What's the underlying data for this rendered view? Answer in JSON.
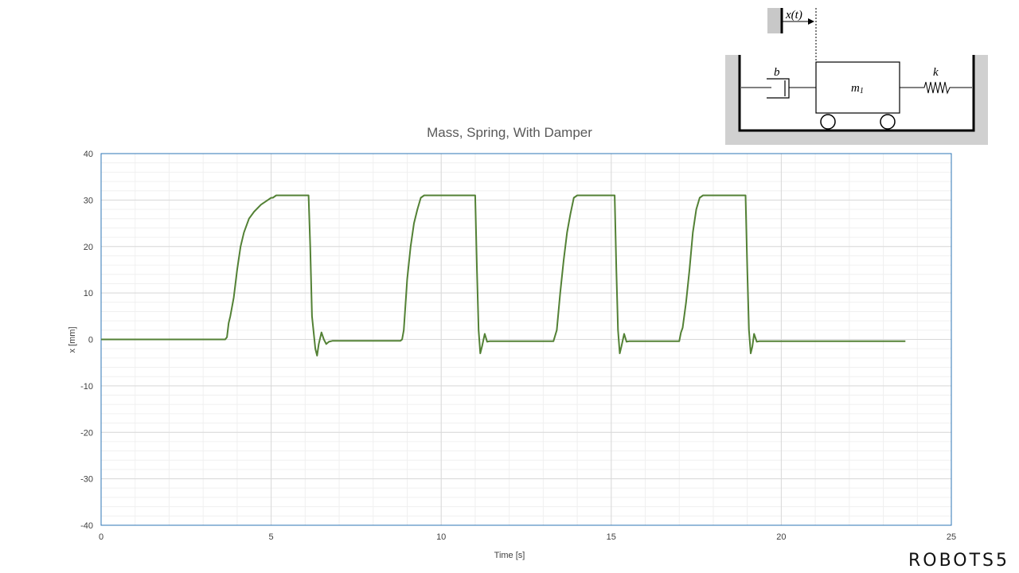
{
  "chart_data": {
    "type": "line",
    "title": "Mass, Spring, With Damper",
    "xlabel": "Time [s]",
    "ylabel": "x [mm]",
    "xlim": [
      0,
      25
    ],
    "ylim": [
      -40,
      40
    ],
    "x_ticks": [
      0,
      5,
      10,
      15,
      20,
      25
    ],
    "y_ticks": [
      -40,
      -30,
      -20,
      -10,
      0,
      10,
      20,
      30,
      40
    ],
    "grid": true,
    "legend": "none",
    "series": [
      {
        "color": "#538135",
        "x": [
          0,
          3.65,
          3.7,
          3.75,
          3.8,
          3.9,
          4.0,
          4.1,
          4.2,
          4.35,
          4.5,
          4.7,
          4.9,
          5.0,
          5.05,
          5.15,
          5.3,
          5.5,
          6.1,
          6.15,
          6.2,
          6.3,
          6.35,
          6.4,
          6.48,
          6.55,
          6.62,
          6.7,
          6.8,
          8.8,
          8.85,
          8.9,
          9.0,
          9.1,
          9.2,
          9.3,
          9.4,
          9.5,
          9.6,
          11.0,
          11.05,
          11.1,
          11.15,
          11.2,
          11.28,
          11.35,
          11.42,
          11.5,
          11.6,
          13.3,
          13.4,
          13.5,
          13.6,
          13.7,
          13.8,
          13.9,
          14.0,
          14.1,
          14.2,
          15.1,
          15.15,
          15.2,
          15.25,
          15.3,
          15.38,
          15.45,
          15.52,
          15.6,
          15.7,
          17.0,
          17.05,
          17.1,
          17.2,
          17.3,
          17.4,
          17.5,
          17.6,
          17.7,
          17.8,
          18.95,
          19.0,
          19.05,
          19.1,
          19.15,
          19.2,
          19.28,
          19.35,
          19.42,
          19.5,
          19.6,
          23.65
        ],
        "values": [
          0,
          0,
          0.5,
          3.5,
          5,
          9,
          15,
          20,
          23,
          26,
          27.5,
          29,
          30,
          30.5,
          30.5,
          31,
          31,
          31,
          31,
          20,
          5,
          -2,
          -3.5,
          -1,
          1.5,
          0,
          -1,
          -0.5,
          -0.3,
          -0.3,
          0,
          2,
          13,
          20,
          25,
          28,
          30.5,
          31,
          31,
          31,
          15,
          2,
          -3,
          -1.5,
          1.2,
          -0.5,
          -0.4,
          -0.4,
          -0.4,
          -0.4,
          2,
          10,
          17,
          23,
          27,
          30.5,
          31,
          31,
          31,
          31,
          15,
          2,
          -3,
          -1.5,
          1.2,
          -0.5,
          -0.4,
          -0.4,
          -0.4,
          -0.4,
          1.5,
          2.5,
          8,
          15,
          23,
          28,
          30.5,
          31,
          31,
          31,
          15,
          2,
          -3,
          -1.5,
          1.2,
          -0.5,
          -0.4,
          -0.4,
          -0.4,
          -0.4,
          -0.4
        ]
      }
    ]
  },
  "diagram": {
    "x_label": "x(t)",
    "b_label": "b",
    "k_label": "k",
    "m_label": "m",
    "m_subscript": "1"
  },
  "brand": {
    "logo_text": "ROBOTS5"
  }
}
